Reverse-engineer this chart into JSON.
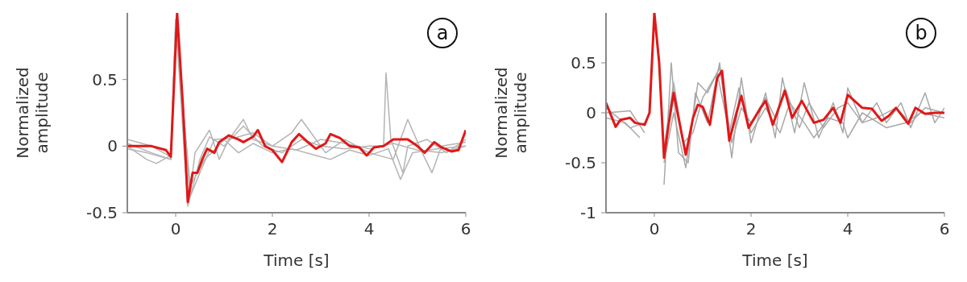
{
  "chart_data": [
    {
      "type": "line",
      "xlabel": "Time [s]",
      "ylabel": "Normalized amplitude",
      "annotations": [
        "a"
      ],
      "xlim": [
        -1,
        6
      ],
      "xticks": [
        0,
        2,
        4,
        6
      ],
      "ylim": [
        -0.5,
        1
      ],
      "yticks": [
        -0.5,
        0,
        0.5
      ],
      "series": [
        {
          "color": "#b4b4b4",
          "x": [
            -1,
            -0.5,
            -0.1,
            0,
            0.25,
            0.5,
            0.7,
            1,
            1.4,
            1.8,
            2.2,
            2.6,
            3,
            3.5,
            4,
            4.3,
            4.35,
            4.45,
            4.7,
            4.8,
            5.2,
            5.6,
            6
          ],
          "values": [
            0.05,
            0,
            -0.08,
            0.95,
            -0.45,
            -0.1,
            0.07,
            0,
            0.15,
            0,
            -0.05,
            0.05,
            0,
            -0.02,
            0,
            0,
            0.55,
            0.05,
            -0.2,
            0,
            0.05,
            -0.05,
            0.05
          ]
        },
        {
          "color": "#b4b4b4",
          "x": [
            -1,
            -0.6,
            -0.4,
            -0.1,
            0,
            0.3,
            0.4,
            0.7,
            0.9,
            1.1,
            1.4,
            1.6,
            2,
            2.4,
            2.6,
            2.8,
            3.1,
            3.5,
            4,
            4.5,
            4.8,
            5.1,
            5.3,
            5.5,
            6
          ],
          "values": [
            0,
            -0.1,
            -0.13,
            -0.07,
            0.95,
            -0.35,
            -0.05,
            0.12,
            -0.1,
            0.05,
            0.2,
            0.05,
            0,
            0.1,
            0.2,
            0.1,
            -0.05,
            0.05,
            -0.05,
            -0.1,
            0.2,
            -0.05,
            -0.2,
            0,
            0.03
          ]
        },
        {
          "color": "#b4b4b4",
          "x": [
            -1,
            -0.5,
            -0.1,
            0,
            0.3,
            0.6,
            0.8,
            1,
            1.3,
            1.6,
            2,
            2.4,
            2.9,
            3.2,
            3.6,
            4,
            4.4,
            4.65,
            4.9,
            5.4,
            6
          ],
          "values": [
            0.02,
            -0.05,
            -0.1,
            0.9,
            -0.3,
            -0.1,
            -0.03,
            0.05,
            -0.05,
            0.02,
            -0.05,
            -0.02,
            -0.07,
            -0.1,
            -0.03,
            -0.07,
            -0.02,
            -0.25,
            -0.05,
            -0.02,
            0
          ]
        },
        {
          "color": "#b4b4b4",
          "x": [
            -1,
            -0.6,
            -0.1,
            0,
            0.3,
            0.5,
            0.8,
            1.2,
            1.6,
            2,
            2.5,
            3,
            3.5,
            4,
            4.5,
            5,
            5.5,
            6
          ],
          "values": [
            -0.02,
            -0.05,
            -0.1,
            0.92,
            -0.38,
            -0.2,
            0.05,
            0.06,
            0.1,
            0,
            -0.03,
            0.05,
            0.02,
            -0.02,
            0.02,
            -0.03,
            -0.05,
            0
          ]
        },
        {
          "color": "#e01818",
          "x": [
            -1,
            -0.5,
            -0.2,
            -0.1,
            0.03,
            0.15,
            0.25,
            0.35,
            0.45,
            0.55,
            0.65,
            0.8,
            0.9,
            1.1,
            1.3,
            1.4,
            1.6,
            1.7,
            1.85,
            2,
            2.2,
            2.4,
            2.55,
            2.7,
            2.9,
            3.1,
            3.2,
            3.4,
            3.6,
            3.8,
            3.95,
            4.1,
            4.3,
            4.5,
            4.8,
            5,
            5.15,
            5.35,
            5.5,
            5.7,
            5.85,
            6
          ],
          "values": [
            0,
            0,
            -0.03,
            -0.08,
            1,
            0.3,
            -0.42,
            -0.2,
            -0.2,
            -0.1,
            -0.02,
            -0.05,
            0.03,
            0.08,
            0.05,
            0.03,
            0.07,
            0.12,
            0,
            -0.03,
            -0.12,
            0.03,
            0.09,
            0.04,
            -0.02,
            0.02,
            0.09,
            0.06,
            0,
            -0.01,
            -0.07,
            -0.01,
            0,
            0.05,
            0.05,
            0,
            -0.05,
            0.03,
            -0.01,
            -0.04,
            -0.03,
            0.12
          ]
        }
      ]
    },
    {
      "type": "line",
      "xlabel": "Time [s]",
      "ylabel": "Normalized amplitude",
      "annotations": [
        "b"
      ],
      "xlim": [
        -1,
        6
      ],
      "xticks": [
        0,
        2,
        4,
        6
      ],
      "ylim": [
        -1,
        1
      ],
      "yticks": [
        -1,
        -0.5,
        0,
        0.5
      ],
      "series": [
        {
          "color": "#a8a8a8",
          "x": [
            -1,
            -0.5,
            -0.2,
            0,
            0.2,
            0.35,
            0.5,
            0.7,
            0.85,
            1.1,
            1.35,
            1.6,
            1.8,
            2,
            2.3,
            2.5,
            2.65,
            2.9,
            3.1,
            3.4,
            3.7,
            3.9,
            4,
            4.3,
            4.6,
            4.8,
            5.1,
            5.3,
            5.6,
            5.8,
            6
          ],
          "values": [
            0.05,
            -0.15,
            -0.1,
            null,
            -0.72,
            0.5,
            -0.4,
            -0.5,
            0.2,
            -0.1,
            0.5,
            -0.45,
            0.35,
            -0.3,
            0.2,
            -0.25,
            0.35,
            -0.2,
            0.3,
            -0.25,
            0.1,
            -0.2,
            0.25,
            -0.1,
            0.1,
            -0.1,
            0.1,
            -0.15,
            0.2,
            -0.1,
            0.05
          ]
        },
        {
          "color": "#a8a8a8",
          "x": [
            -1,
            -0.5,
            -0.2,
            0,
            0.2,
            0.4,
            0.65,
            0.9,
            1.1,
            1.35,
            1.6,
            1.8,
            2,
            2.3,
            2.5,
            2.7,
            3,
            3.2,
            3.5,
            3.8,
            4,
            4.3,
            4.6,
            5,
            5.3,
            5.6,
            6
          ],
          "values": [
            0,
            0.02,
            -0.2,
            null,
            -0.5,
            0,
            -0.55,
            0.3,
            0.2,
            0.45,
            -0.3,
            0.05,
            -0.1,
            0.15,
            -0.05,
            0.25,
            -0.15,
            0.1,
            -0.15,
            0.05,
            0.1,
            -0.1,
            -0.05,
            0.05,
            -0.1,
            0.05,
            0
          ]
        },
        {
          "color": "#a8a8a8",
          "x": [
            -1,
            -0.6,
            -0.3,
            0,
            0.2,
            0.4,
            0.6,
            0.8,
            1,
            1.3,
            1.55,
            1.75,
            2,
            2.3,
            2.6,
            2.8,
            3.1,
            3.3,
            3.6,
            3.9,
            4,
            4.3,
            4.8,
            5.2,
            5.5,
            6
          ],
          "values": [
            -0.05,
            -0.1,
            -0.25,
            null,
            -0.35,
            0.3,
            -0.3,
            -0.2,
            0.15,
            0.4,
            -0.2,
            0.25,
            -0.2,
            0.05,
            -0.2,
            0.1,
            -0.1,
            -0.25,
            -0.05,
            -0.1,
            -0.25,
            0,
            -0.15,
            -0.1,
            0,
            -0.05
          ]
        },
        {
          "color": "#e01818",
          "x": [
            -1,
            -0.8,
            -0.7,
            -0.5,
            -0.4,
            -0.2,
            -0.1,
            0,
            0.1,
            0.2,
            0.3,
            0.4,
            0.5,
            0.65,
            0.8,
            0.9,
            1,
            1.15,
            1.3,
            1.4,
            1.55,
            1.7,
            1.8,
            1.95,
            2.2,
            2.3,
            2.45,
            2.7,
            2.85,
            3.05,
            3.3,
            3.5,
            3.7,
            3.85,
            4,
            4.3,
            4.5,
            4.7,
            4.85,
            5,
            5.25,
            5.4,
            5.6,
            5.8,
            6
          ],
          "values": [
            0.1,
            -0.14,
            -0.07,
            -0.05,
            -0.1,
            -0.12,
            0,
            1,
            0.5,
            -0.45,
            -0.1,
            0.2,
            -0.05,
            -0.42,
            -0.05,
            0.08,
            0.06,
            -0.12,
            0.35,
            0.42,
            -0.28,
            0,
            0.17,
            -0.15,
            0.05,
            0.12,
            -0.12,
            0.22,
            -0.05,
            0.12,
            -0.1,
            -0.07,
            0.05,
            -0.1,
            0.18,
            0.05,
            0.04,
            -0.08,
            -0.03,
            0.05,
            -0.11,
            0.05,
            -0.01,
            0,
            0
          ]
        }
      ]
    }
  ]
}
